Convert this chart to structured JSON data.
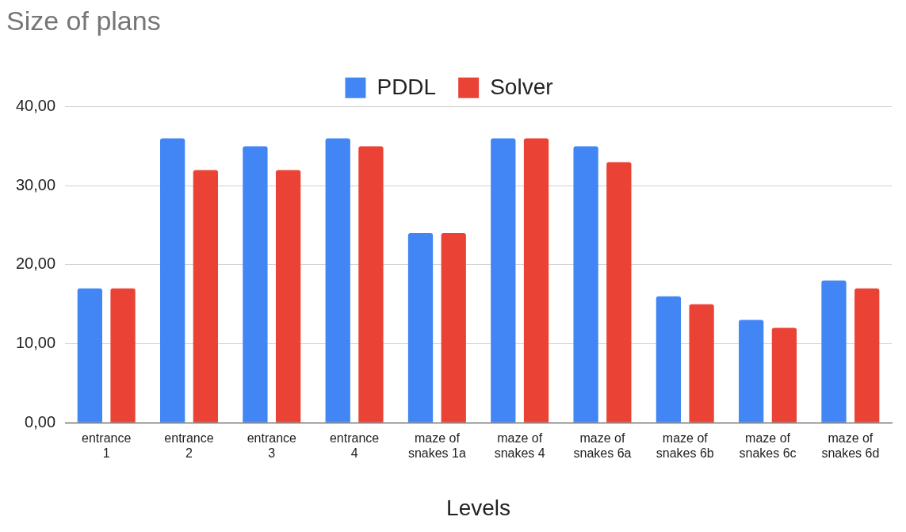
{
  "chart_data": {
    "type": "bar",
    "title": "Size of plans",
    "xlabel": "Levels",
    "categories": [
      "entrance 1",
      "entrance 2",
      "entrance 3",
      "entrance 4",
      "maze of snakes 1a",
      "maze of snakes 4",
      "maze of snakes 6a",
      "maze of snakes 6b",
      "maze of snakes 6c",
      "maze of snakes 6d"
    ],
    "series": [
      {
        "name": "PDDL",
        "color": "#4285f4",
        "values": [
          17,
          36,
          35,
          36,
          24,
          36,
          35,
          16,
          13,
          18
        ]
      },
      {
        "name": "Solver",
        "color": "#ea4335",
        "values": [
          17,
          32,
          32,
          35,
          24,
          36,
          33,
          15,
          12,
          17
        ]
      }
    ],
    "ylim": [
      0,
      40
    ],
    "yticks": [
      {
        "value": 0,
        "label": "0,00"
      },
      {
        "value": 10,
        "label": "10,00"
      },
      {
        "value": 20,
        "label": "20,00"
      },
      {
        "value": 30,
        "label": "30,00"
      },
      {
        "value": 40,
        "label": "40,00"
      }
    ],
    "grid": "y",
    "legend": "top"
  }
}
